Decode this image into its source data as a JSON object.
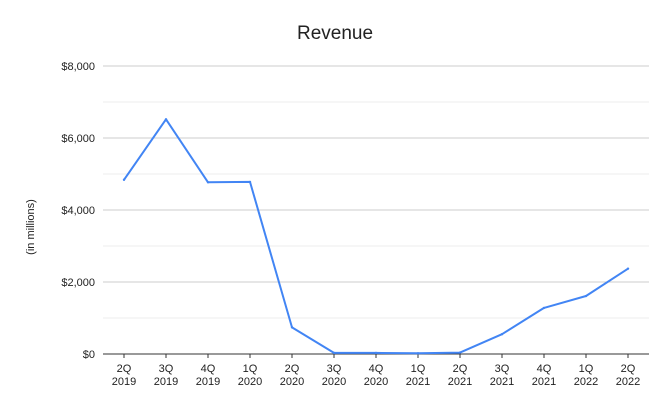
{
  "chart_data": {
    "type": "line",
    "title": "Revenue",
    "xlabel": "",
    "ylabel": "(in millions)",
    "categories": [
      [
        "2Q",
        "2019"
      ],
      [
        "3Q",
        "2019"
      ],
      [
        "4Q",
        "2019"
      ],
      [
        "1Q",
        "2020"
      ],
      [
        "2Q",
        "2020"
      ],
      [
        "3Q",
        "2020"
      ],
      [
        "4Q",
        "2020"
      ],
      [
        "1Q",
        "2021"
      ],
      [
        "2Q",
        "2021"
      ],
      [
        "3Q",
        "2021"
      ],
      [
        "4Q",
        "2021"
      ],
      [
        "1Q",
        "2022"
      ],
      [
        "2Q",
        "2022"
      ]
    ],
    "series": [
      {
        "values": [
          4840,
          6520,
          4770,
          4780,
          740,
          30,
          30,
          20,
          40,
          550,
          1280,
          1610,
          2370
        ],
        "color": "#4285F4"
      }
    ],
    "ylim": [
      0,
      8000
    ],
    "yticks": [
      0,
      2000,
      4000,
      6000,
      8000
    ],
    "ytick_labels": [
      "$0",
      "$2,000",
      "$4,000",
      "$6,000",
      "$8,000"
    ],
    "minor_grid": true,
    "grid": true,
    "legend": "none",
    "colors": {
      "line": "#4285F4",
      "grid_major": "#cccccc",
      "grid_minor": "#eeeeee",
      "axis": "#333333",
      "text": "#222222"
    }
  }
}
